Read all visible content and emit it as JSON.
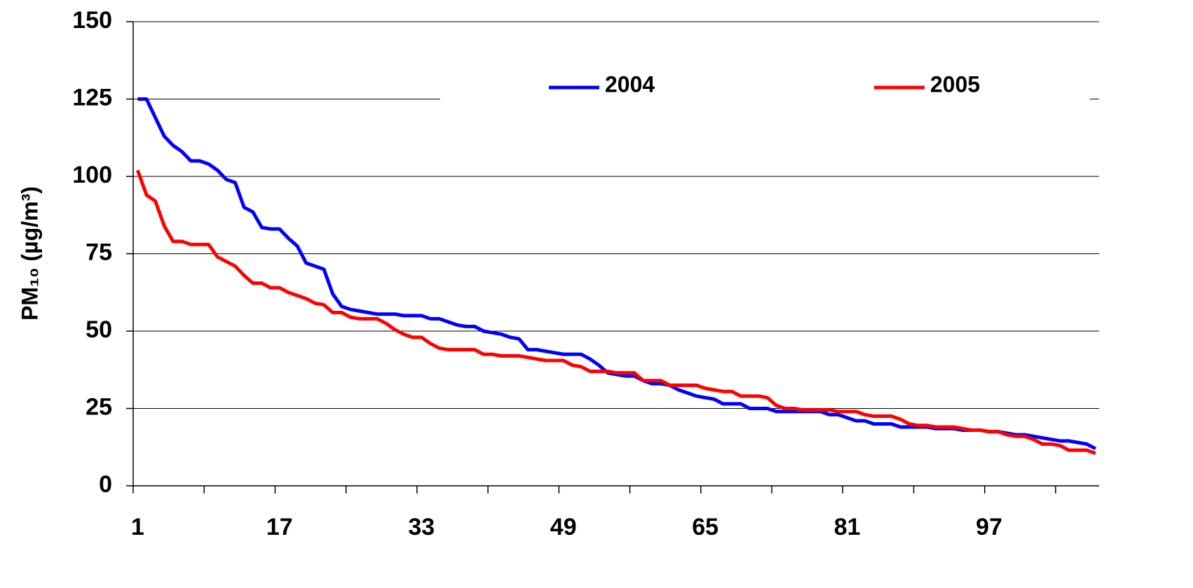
{
  "chart_data": {
    "type": "line",
    "y_label": "PM₁₀ (µg/m³)",
    "x": [
      1,
      2,
      3,
      4,
      5,
      6,
      7,
      8,
      9,
      10,
      11,
      12,
      13,
      14,
      15,
      16,
      17,
      18,
      19,
      20,
      21,
      22,
      23,
      24,
      25,
      26,
      27,
      28,
      29,
      30,
      31,
      32,
      33,
      34,
      35,
      36,
      37,
      38,
      39,
      40,
      41,
      42,
      43,
      44,
      45,
      46,
      47,
      48,
      49,
      50,
      51,
      52,
      53,
      54,
      55,
      56,
      57,
      58,
      59,
      60,
      61,
      62,
      63,
      64,
      65,
      66,
      67,
      68,
      69,
      70,
      71,
      72,
      73,
      74,
      75,
      76,
      77,
      78,
      79,
      80,
      81,
      82,
      83,
      84,
      85,
      86,
      87,
      88,
      89,
      90,
      91,
      92,
      93,
      94,
      95,
      96,
      97,
      98,
      99,
      100,
      101,
      102,
      103,
      104,
      105,
      106,
      107,
      108,
      109
    ],
    "series": [
      {
        "name": "2004",
        "color": "#0000ff",
        "values": [
          125,
          125,
          119,
          113,
          110,
          108,
          105,
          105,
          104,
          102,
          99,
          98,
          90,
          88.5,
          83.5,
          83,
          83,
          80,
          77.5,
          72,
          71,
          70,
          62,
          58,
          57,
          56.5,
          56,
          55.5,
          55.5,
          55.5,
          55,
          55,
          55,
          54,
          54,
          53,
          52,
          51.5,
          51.5,
          50,
          49.5,
          49,
          48,
          47.5,
          44,
          44,
          43.5,
          43,
          42.5,
          42.5,
          42.5,
          41,
          39,
          36.5,
          36,
          35.5,
          35.5,
          34,
          33,
          33,
          32.5,
          31,
          30,
          29,
          28.5,
          28,
          26.5,
          26.5,
          26.5,
          25,
          25,
          25,
          24,
          24,
          24,
          24,
          24,
          24,
          23,
          23,
          22,
          21,
          21,
          20,
          20,
          20,
          19,
          19,
          19,
          19,
          18.5,
          18.5,
          18.5,
          18,
          18,
          18,
          17.5,
          17.5,
          17,
          16.5,
          16.5,
          16,
          15.5,
          15,
          14.5,
          14.5,
          14,
          13.5,
          12
        ]
      },
      {
        "name": "2005",
        "color": "#ff0000",
        "values": [
          102,
          94,
          92,
          84,
          79,
          79,
          78,
          78,
          78,
          74,
          72.5,
          71,
          68,
          65.5,
          65.5,
          64,
          64,
          62.5,
          61.5,
          60.5,
          59,
          58.5,
          56,
          56,
          54.5,
          54,
          54,
          54,
          52.5,
          50.5,
          49,
          48,
          48,
          46,
          44.5,
          44,
          44,
          44,
          44,
          42.5,
          42.5,
          42,
          42,
          42,
          41.5,
          41,
          40.5,
          40.5,
          40.5,
          39,
          38.5,
          37,
          37,
          37,
          36.5,
          36.5,
          36.5,
          34,
          34,
          34,
          32.5,
          32.5,
          32.5,
          32.5,
          31.5,
          31,
          30.5,
          30.5,
          29,
          29,
          29,
          28.5,
          26,
          25,
          25,
          24.5,
          24.5,
          24.5,
          24.5,
          24,
          24,
          24,
          23,
          22.5,
          22.5,
          22.5,
          21.5,
          20,
          19.5,
          19.5,
          19,
          19,
          19,
          18.5,
          18,
          18,
          17.5,
          17.5,
          16.5,
          16,
          16,
          15,
          13.5,
          13.5,
          13,
          11.5,
          11.5,
          11.5,
          10.5
        ]
      }
    ],
    "xlim": [
      0.5,
      109.4
    ],
    "xticks": [
      1,
      17,
      33,
      49,
      65,
      81,
      97
    ],
    "xtick_marks": [
      0.5,
      8.5,
      16.5,
      24.5,
      32.5,
      40.5,
      48.5,
      56.5,
      64.5,
      72.5,
      80.5,
      88.5,
      96.5,
      104.5
    ],
    "ylim": [
      0,
      150
    ],
    "yticks": [
      0,
      25,
      50,
      75,
      100,
      125,
      150
    ],
    "grid": true,
    "legend": "top"
  }
}
